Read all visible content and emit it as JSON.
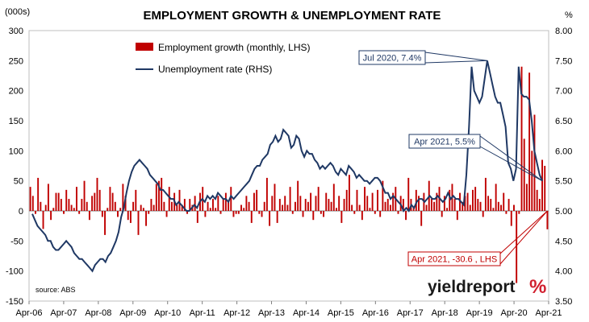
{
  "chart_data": {
    "type": "bar+line",
    "title": "EMPLOYMENT GROWTH & UNEMPLOYMENT RATE",
    "left_axis": {
      "unit": "(000s)",
      "min": -150,
      "max": 300,
      "step": 50,
      "ticks": [
        "-150",
        "-100",
        "-50",
        "0",
        "50",
        "100",
        "150",
        "200",
        "250",
        "300"
      ]
    },
    "right_axis": {
      "unit": "%",
      "min": 3.5,
      "max": 8.0,
      "step": 0.5,
      "ticks": [
        "3.50",
        "4.00",
        "4.50",
        "5.00",
        "5.50",
        "6.00",
        "6.50",
        "7.00",
        "7.50",
        "8.00"
      ]
    },
    "x_range": [
      "Apr-06",
      "Apr-21"
    ],
    "x_ticks": [
      "Apr-06",
      "Apr-07",
      "Apr-08",
      "Apr-09",
      "Apr-10",
      "Apr-11",
      "Apr-12",
      "Apr-13",
      "Apr-14",
      "Apr-15",
      "Apr-16",
      "Apr-17",
      "Apr-18",
      "Apr-19",
      "Apr-20",
      "Apr-21"
    ],
    "legend": {
      "placement": "top-left",
      "bar_label": "Employment growth (monthly, LHS)",
      "line_label": "Unemployment rate (RHS)"
    },
    "series": [
      {
        "name": "Employment growth (monthly, LHS)",
        "kind": "bar",
        "axis": "left",
        "color": "#c00000",
        "values": [
          40,
          25,
          -5,
          55,
          15,
          -30,
          10,
          45,
          -15,
          5,
          30,
          30,
          20,
          -5,
          35,
          20,
          10,
          5,
          40,
          -5,
          20,
          50,
          15,
          -15,
          25,
          30,
          55,
          35,
          -10,
          -40,
          5,
          40,
          30,
          15,
          -10,
          5,
          45,
          25,
          -15,
          -20,
          15,
          35,
          -40,
          10,
          5,
          -25,
          -5,
          20,
          10,
          45,
          50,
          55,
          15,
          -10,
          40,
          15,
          30,
          10,
          35,
          10,
          20,
          -5,
          20,
          10,
          25,
          -20,
          30,
          40,
          -10,
          15,
          5,
          20,
          5,
          25,
          -5,
          20,
          30,
          15,
          40,
          -10,
          -5,
          -5,
          10,
          5,
          25,
          15,
          -20,
          30,
          35,
          -5,
          -10,
          15,
          55,
          -25,
          25,
          45,
          -20,
          20,
          10,
          25,
          10,
          40,
          -5,
          15,
          50,
          25,
          -10,
          20,
          15,
          30,
          -15,
          25,
          40,
          -5,
          -10,
          30,
          20,
          15,
          45,
          5,
          25,
          -20,
          20,
          35,
          60,
          10,
          -5,
          35,
          10,
          -15,
          40,
          25,
          5,
          30,
          -5,
          35,
          -10,
          50,
          15,
          20,
          10,
          30,
          40,
          -5,
          25,
          20,
          -15,
          55,
          20,
          5,
          35,
          25,
          -25,
          30,
          10,
          50,
          20,
          15,
          30,
          40,
          -10,
          25,
          5,
          35,
          45,
          20,
          -15,
          30,
          15,
          25,
          30,
          10,
          35,
          40,
          20,
          15,
          -10,
          55,
          25,
          20,
          5,
          45,
          15,
          10,
          30,
          -5,
          20,
          -25,
          10,
          -120,
          -5,
          240,
          120,
          45,
          230,
          100,
          160,
          35,
          20,
          85,
          75,
          -30.6
        ]
      },
      {
        "name": "Unemployment rate (RHS)",
        "kind": "line",
        "axis": "right",
        "color": "#1f3864",
        "values": [
          4.95,
          4.85,
          4.75,
          4.7,
          4.65,
          4.6,
          4.5,
          4.5,
          4.4,
          4.35,
          4.35,
          4.4,
          4.45,
          4.5,
          4.45,
          4.4,
          4.3,
          4.25,
          4.2,
          4.2,
          4.15,
          4.1,
          4.05,
          4.0,
          4.1,
          4.15,
          4.2,
          4.2,
          4.15,
          4.25,
          4.3,
          4.4,
          4.5,
          4.65,
          4.9,
          5.05,
          5.3,
          5.5,
          5.65,
          5.75,
          5.8,
          5.85,
          5.8,
          5.75,
          5.7,
          5.6,
          5.55,
          5.5,
          5.45,
          5.35,
          5.35,
          5.3,
          5.25,
          5.2,
          5.2,
          5.1,
          5.15,
          5.1,
          5.05,
          5.0,
          5.0,
          5.05,
          5.1,
          5.05,
          5.15,
          5.2,
          5.15,
          5.25,
          5.2,
          5.25,
          5.2,
          5.3,
          5.25,
          5.2,
          5.2,
          5.15,
          5.25,
          5.2,
          5.25,
          5.3,
          5.35,
          5.4,
          5.45,
          5.5,
          5.6,
          5.7,
          5.75,
          5.75,
          5.85,
          5.9,
          5.95,
          6.1,
          6.15,
          6.25,
          6.15,
          6.2,
          6.35,
          6.3,
          6.25,
          6.05,
          6.1,
          6.25,
          6.2,
          6.0,
          5.9,
          6.0,
          5.95,
          5.95,
          5.85,
          5.8,
          5.7,
          5.75,
          5.7,
          5.75,
          5.8,
          5.75,
          5.65,
          5.6,
          5.7,
          5.65,
          5.6,
          5.75,
          5.7,
          5.65,
          5.55,
          5.6,
          5.55,
          5.5,
          5.5,
          5.45,
          5.5,
          5.55,
          5.55,
          5.5,
          5.4,
          5.3,
          5.3,
          5.2,
          5.25,
          5.2,
          5.15,
          5.1,
          5.0,
          5.05,
          5.0,
          5.1,
          5.05,
          5.15,
          5.2,
          5.2,
          5.15,
          5.2,
          5.25,
          5.2,
          5.2,
          5.25,
          5.2,
          5.15,
          5.2,
          5.3,
          5.2,
          5.25,
          5.2,
          5.2,
          5.15,
          5.1,
          5.6,
          6.4,
          7.4,
          7.0,
          6.9,
          6.8,
          6.9,
          7.2,
          7.5,
          7.3,
          7.1,
          6.9,
          6.8,
          6.8,
          6.6,
          6.4,
          5.8,
          5.7,
          5.5,
          5.7,
          7.4,
          6.95,
          6.9,
          6.9,
          6.85,
          6.5,
          6.0,
          5.8,
          5.6,
          5.5
        ]
      }
    ],
    "annotations": [
      {
        "text": "Jul 2020, 7.4%",
        "series": "Unemployment rate (RHS)",
        "color": "#1f3864"
      },
      {
        "text": "Apr 2021, 5.5%",
        "series": "Unemployment rate (RHS)",
        "color": "#1f3864"
      },
      {
        "text": "Apr 2021, -30.6 , LHS",
        "series": "Employment growth (monthly, LHS)",
        "color": "#c00000"
      }
    ],
    "grid": false
  },
  "source": "source: ABS",
  "brand": {
    "word": "yieldreport",
    "pct": "%"
  }
}
